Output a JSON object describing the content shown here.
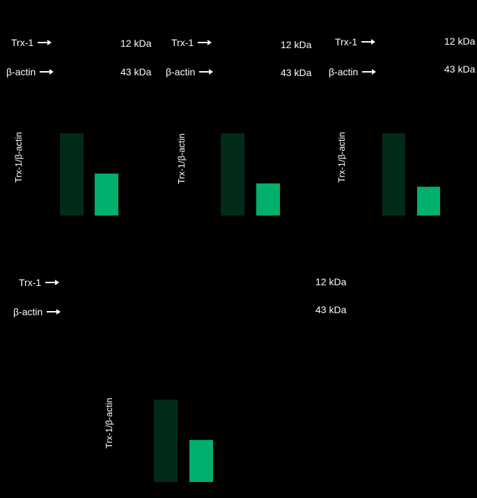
{
  "labels": {
    "protein": "Trx-1",
    "control": "β-actin",
    "protein_kda": "12 kDa",
    "control_kda": "43 kDa",
    "ylabel": "Trx-1/β-actin"
  },
  "colors": {
    "background": "#000000",
    "bar_dark": "#012b18",
    "bar_light": "#00b06b",
    "text": "#ffffff"
  },
  "chart_data": [
    {
      "type": "bar",
      "title": "",
      "xlabel": "",
      "ylabel": "Trx-1/β-actin",
      "ylim": [
        0,
        1.0
      ],
      "categories": [
        "",
        ""
      ],
      "values": [
        1.0,
        0.51
      ]
    },
    {
      "type": "bar",
      "title": "",
      "xlabel": "",
      "ylabel": "Trx-1/β-actin",
      "ylim": [
        0,
        1.0
      ],
      "categories": [
        "",
        ""
      ],
      "values": [
        1.0,
        0.39
      ]
    },
    {
      "type": "bar",
      "title": "",
      "xlabel": "",
      "ylabel": "Trx-1/β-actin",
      "ylim": [
        0,
        1.0
      ],
      "categories": [
        "",
        ""
      ],
      "values": [
        1.0,
        0.35
      ]
    },
    {
      "type": "bar",
      "title": "",
      "xlabel": "",
      "ylabel": "Trx-1/β-actin",
      "ylim": [
        0,
        1.0
      ],
      "categories": [
        "",
        ""
      ],
      "values": [
        1.0,
        0.51
      ]
    }
  ]
}
